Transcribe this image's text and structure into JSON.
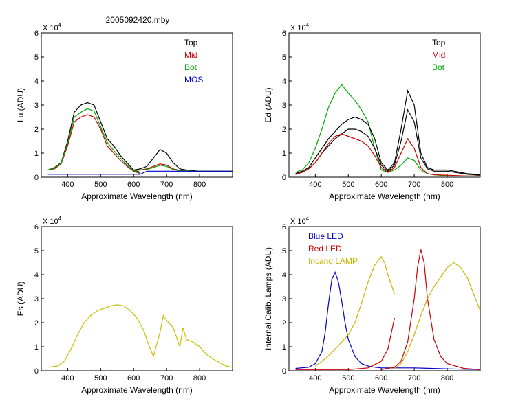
{
  "figure_title": "2005092420.mby",
  "colors": {
    "top": "#000000",
    "mid": "#cc0000",
    "bot": "#00aa00",
    "mos": "#0000cc",
    "es": "#c8c000",
    "blue_led": "#0000cc",
    "red_led": "#cc0000",
    "incand": "#c8b400"
  },
  "chart_data": [
    {
      "id": "lu",
      "type": "line",
      "ylabel": "Lu (ADU)",
      "xlabel": "Approximate Wavelength (nm)",
      "exponent_label": "X 10",
      "exponent_power": "4",
      "xlim": [
        320,
        900
      ],
      "ylim": [
        0,
        6
      ],
      "xticks": [
        400,
        500,
        600,
        700,
        800
      ],
      "yticks": [
        0,
        1,
        2,
        3,
        4,
        5,
        6
      ],
      "legend_position": "top-right",
      "legend": [
        {
          "name": "Top",
          "color_key": "top"
        },
        {
          "name": "Mid",
          "color_key": "mid"
        },
        {
          "name": "Bot",
          "color_key": "bot"
        },
        {
          "name": "MOS",
          "color_key": "mos"
        }
      ],
      "series": [
        {
          "name": "Top",
          "color_key": "top",
          "x": [
            340,
            360,
            380,
            400,
            420,
            440,
            460,
            480,
            500,
            520,
            540,
            560,
            580,
            600,
            620
          ],
          "y": [
            0.3,
            0.4,
            0.6,
            1.5,
            2.7,
            3.0,
            3.1,
            3.0,
            2.3,
            1.6,
            1.3,
            0.9,
            0.6,
            0.3,
            0.2
          ]
        },
        {
          "name": "Mid",
          "color_key": "mid",
          "x": [
            340,
            360,
            380,
            400,
            420,
            440,
            460,
            480,
            500,
            520,
            540,
            560,
            580,
            600,
            620
          ],
          "y": [
            0.3,
            0.35,
            0.55,
            1.3,
            2.3,
            2.5,
            2.6,
            2.5,
            2.0,
            1.3,
            1.0,
            0.7,
            0.45,
            0.25,
            0.15
          ]
        },
        {
          "name": "Bot",
          "color_key": "bot",
          "x": [
            340,
            360,
            380,
            400,
            420,
            440,
            460,
            480,
            500,
            520,
            540,
            560,
            580,
            600,
            620
          ],
          "y": [
            0.3,
            0.38,
            0.58,
            1.4,
            2.5,
            2.7,
            2.85,
            2.75,
            2.1,
            1.45,
            1.1,
            0.8,
            0.5,
            0.28,
            0.18
          ]
        },
        {
          "name": "Top",
          "color_key": "top",
          "x": [
            600,
            620,
            640,
            660,
            680,
            700,
            720,
            740,
            760,
            800,
            860,
            900
          ],
          "y": [
            0.3,
            0.35,
            0.45,
            0.8,
            1.15,
            1.0,
            0.6,
            0.35,
            0.3,
            0.25,
            0.25,
            0.25
          ]
        },
        {
          "name": "Mid",
          "color_key": "mid",
          "x": [
            600,
            620,
            640,
            660,
            680,
            700,
            720,
            740,
            760,
            800,
            860,
            900
          ],
          "y": [
            0.3,
            0.3,
            0.35,
            0.45,
            0.55,
            0.5,
            0.35,
            0.28,
            0.26,
            0.25,
            0.25,
            0.25
          ]
        },
        {
          "name": "Bot",
          "color_key": "bot",
          "x": [
            600,
            620,
            640,
            660,
            680,
            700,
            720,
            740,
            760,
            800,
            860,
            900
          ],
          "y": [
            0.3,
            0.3,
            0.32,
            0.4,
            0.5,
            0.45,
            0.32,
            0.27,
            0.26,
            0.25,
            0.25,
            0.25
          ]
        },
        {
          "name": "MOS",
          "color_key": "mos",
          "x": [
            340,
            620,
            640,
            900
          ],
          "y": [
            0.12,
            0.12,
            0.25,
            0.25
          ]
        }
      ]
    },
    {
      "id": "ed",
      "type": "line",
      "ylabel": "Ed  (ADU)",
      "xlabel": "Approximate Wavelength (nm)",
      "exponent_label": "X 10",
      "exponent_power": "4",
      "xlim": [
        320,
        900
      ],
      "ylim": [
        0,
        6
      ],
      "xticks": [
        400,
        500,
        600,
        700,
        800
      ],
      "yticks": [
        0,
        1,
        2,
        3,
        4,
        5,
        6
      ],
      "legend_position": "top-right",
      "legend": [
        {
          "name": "Top",
          "color_key": "top"
        },
        {
          "name": "Mid",
          "color_key": "mid"
        },
        {
          "name": "Bot",
          "color_key": "bot"
        }
      ],
      "series": [
        {
          "name": "Bot",
          "color_key": "bot",
          "x": [
            340,
            360,
            380,
            400,
            420,
            440,
            460,
            480,
            500,
            520,
            540,
            560,
            580,
            600,
            620,
            640,
            660,
            680,
            700,
            720,
            740,
            760,
            800,
            860,
            900
          ],
          "y": [
            0.2,
            0.3,
            0.6,
            1.2,
            2.0,
            2.9,
            3.5,
            3.85,
            3.5,
            3.2,
            2.8,
            2.3,
            1.2,
            0.3,
            0.2,
            0.3,
            0.5,
            0.8,
            0.7,
            0.3,
            0.15,
            0.1,
            0.05,
            0.05,
            0.05
          ]
        },
        {
          "name": "Top",
          "color_key": "top",
          "x": [
            340,
            360,
            380,
            400,
            420,
            440,
            460,
            480,
            500,
            520,
            540,
            560,
            580,
            600,
            620,
            640,
            660,
            680,
            700,
            720,
            740,
            760,
            800,
            860,
            900
          ],
          "y": [
            0.15,
            0.25,
            0.4,
            0.8,
            1.2,
            1.6,
            1.9,
            2.2,
            2.4,
            2.5,
            2.4,
            2.2,
            1.6,
            0.6,
            0.3,
            0.6,
            2.0,
            3.6,
            3.0,
            1.0,
            0.4,
            0.3,
            0.3,
            0.15,
            0.1
          ]
        },
        {
          "name": "Top",
          "color_key": "top",
          "x": [
            340,
            360,
            380,
            400,
            420,
            440,
            460,
            480,
            500,
            520,
            540,
            560,
            580,
            600,
            620,
            640,
            660,
            680,
            700,
            720,
            740,
            760,
            800,
            860,
            900
          ],
          "y": [
            0.12,
            0.2,
            0.35,
            0.6,
            1.0,
            1.3,
            1.6,
            1.8,
            2.0,
            2.0,
            1.9,
            1.7,
            1.2,
            0.5,
            0.25,
            0.5,
            1.5,
            2.8,
            2.3,
            0.8,
            0.35,
            0.25,
            0.25,
            0.12,
            0.08
          ]
        },
        {
          "name": "Mid",
          "color_key": "mid",
          "x": [
            340,
            360,
            380,
            400,
            420,
            440,
            460,
            480,
            500,
            520,
            540,
            560,
            580,
            600,
            620,
            640,
            660,
            680,
            700,
            720,
            740,
            760,
            800,
            860,
            900
          ],
          "y": [
            0.12,
            0.2,
            0.35,
            0.6,
            1.0,
            1.4,
            1.7,
            1.8,
            1.7,
            1.6,
            1.5,
            1.3,
            0.9,
            0.4,
            0.2,
            0.4,
            1.0,
            1.6,
            1.2,
            0.4,
            0.15,
            0.1,
            0.08,
            0.05,
            0.05
          ]
        }
      ]
    },
    {
      "id": "es",
      "type": "line",
      "ylabel": "Es  (ADU)",
      "xlabel": "Approximate Wavelength (nm)",
      "exponent_label": "X 10",
      "exponent_power": "4",
      "xlim": [
        320,
        900
      ],
      "ylim": [
        0,
        6
      ],
      "xticks": [
        400,
        500,
        600,
        700,
        800
      ],
      "yticks": [
        0,
        1,
        2,
        3,
        4,
        5,
        6
      ],
      "series": [
        {
          "name": "",
          "color_key": "es",
          "x": [
            340,
            370,
            390,
            410,
            430,
            450,
            470,
            490,
            510,
            530,
            550,
            570,
            590,
            610,
            630,
            645,
            660,
            680,
            690,
            700,
            720,
            740,
            750,
            760,
            780,
            800,
            820,
            840,
            860,
            880,
            900
          ],
          "y": [
            0.15,
            0.2,
            0.4,
            0.9,
            1.5,
            2.0,
            2.3,
            2.5,
            2.6,
            2.7,
            2.75,
            2.7,
            2.5,
            2.2,
            1.7,
            1.1,
            0.6,
            1.6,
            2.3,
            2.1,
            1.8,
            1.0,
            1.8,
            1.3,
            1.2,
            1.0,
            0.7,
            0.5,
            0.35,
            0.2,
            0.15
          ]
        }
      ]
    },
    {
      "id": "cal",
      "type": "line",
      "ylabel": "Internal Calib. Lamps (ADU)",
      "xlabel": "Approximate Wavelength (nm)",
      "exponent_label": "X 10",
      "exponent_power": "4",
      "xlim": [
        320,
        900
      ],
      "ylim": [
        0,
        6
      ],
      "xticks": [
        400,
        500,
        600,
        700,
        800
      ],
      "yticks": [
        0,
        1,
        2,
        3,
        4,
        5,
        6
      ],
      "legend_position": "top-left",
      "legend": [
        {
          "name": "Blue LED",
          "color_key": "blue_led"
        },
        {
          "name": "Red LED",
          "color_key": "red_led"
        },
        {
          "name": "Incand LAMP",
          "color_key": "incand"
        }
      ],
      "series": [
        {
          "name": "Blue LED",
          "color_key": "blue_led",
          "x": [
            340,
            380,
            400,
            420,
            430,
            440,
            450,
            460,
            470,
            480,
            490,
            500,
            520,
            540,
            560,
            580,
            600,
            650,
            700,
            750,
            800,
            900
          ],
          "y": [
            0.1,
            0.15,
            0.3,
            0.8,
            1.6,
            2.8,
            3.8,
            4.1,
            3.7,
            2.9,
            2.0,
            1.3,
            0.6,
            0.3,
            0.2,
            0.15,
            0.12,
            0.12,
            0.12,
            0.1,
            0.08,
            0.05
          ]
        },
        {
          "name": "Red LED",
          "color_key": "red_led",
          "x": [
            340,
            500,
            560,
            600,
            620,
            640
          ],
          "y": [
            0.05,
            0.05,
            0.12,
            0.4,
            0.9,
            2.2
          ]
        },
        {
          "name": "Red LED",
          "color_key": "red_led",
          "x": [
            600,
            640,
            660,
            680,
            700,
            710,
            720,
            730,
            740,
            760,
            780,
            800,
            850,
            900
          ],
          "y": [
            0.05,
            0.15,
            0.4,
            1.2,
            3.0,
            4.3,
            5.05,
            4.5,
            3.0,
            1.3,
            0.6,
            0.3,
            0.1,
            0.05
          ]
        },
        {
          "name": "Incand LAMP",
          "color_key": "incand",
          "x": [
            400,
            430,
            460,
            480,
            500,
            520,
            540,
            560,
            580,
            600,
            610,
            620,
            630,
            640
          ],
          "y": [
            0.2,
            0.5,
            0.9,
            1.2,
            1.5,
            2.0,
            2.8,
            3.7,
            4.4,
            4.75,
            4.5,
            4.0,
            3.6,
            3.2
          ]
        },
        {
          "name": "Incand LAMP",
          "color_key": "incand",
          "x": [
            640,
            660,
            680,
            700,
            720,
            740,
            760,
            780,
            800,
            820,
            840,
            860,
            880,
            900
          ],
          "y": [
            0.1,
            0.3,
            0.8,
            1.5,
            2.3,
            3.0,
            3.5,
            3.9,
            4.3,
            4.5,
            4.3,
            3.9,
            3.2,
            2.5
          ]
        }
      ]
    }
  ]
}
